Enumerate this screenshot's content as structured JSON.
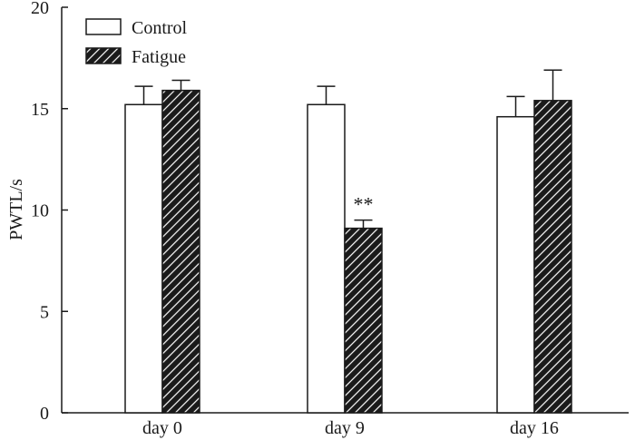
{
  "chart_data": {
    "type": "bar",
    "title": "",
    "xlabel": "",
    "ylabel": "PWTL/s",
    "ylim": [
      0,
      20
    ],
    "yticks": [
      0,
      5,
      10,
      15,
      20
    ],
    "categories": [
      "day 0",
      "day 9",
      "day 16"
    ],
    "series": [
      {
        "name": "Control",
        "values": [
          15.2,
          15.2,
          14.6
        ],
        "errors": [
          0.9,
          0.9,
          1.0
        ],
        "pattern": "solid-white"
      },
      {
        "name": "Fatigue",
        "values": [
          15.9,
          9.1,
          15.4
        ],
        "errors": [
          0.5,
          0.4,
          1.5
        ],
        "pattern": "hatched"
      }
    ],
    "annotations": [
      {
        "category": "day 9",
        "series": "Fatigue",
        "text": "**"
      }
    ],
    "legend_position": "top-left",
    "grid": false
  },
  "colors": {
    "axis": "#1a1a1a",
    "bar_fill": "#ffffff",
    "hatch": "#1a1a1a"
  }
}
